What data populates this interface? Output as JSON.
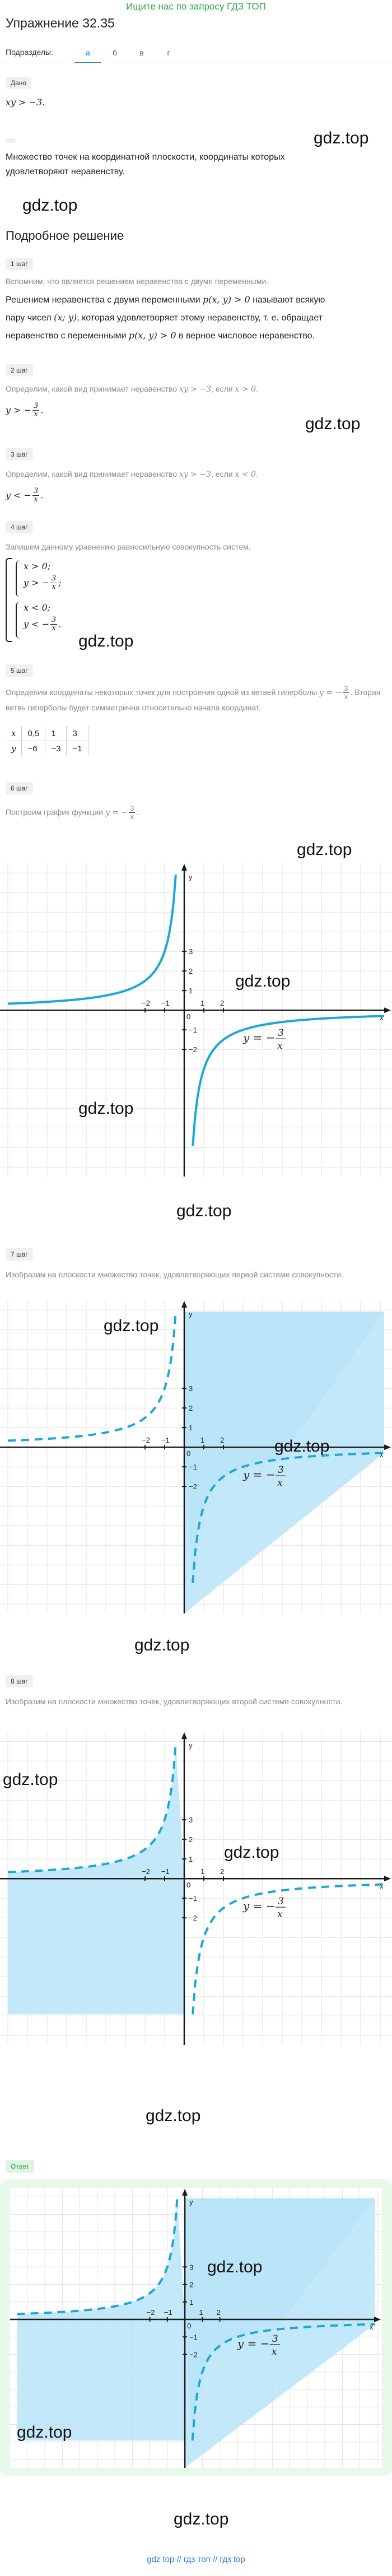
{
  "top_link": "Ищите нас по запросу ГДЗ ТОП",
  "title": "Упражнение 32.35",
  "subsections": {
    "label": "Подразделы:",
    "tabs": [
      "а",
      "б",
      "в",
      "г"
    ],
    "active": "а"
  },
  "given": {
    "tag": "Дано",
    "expr": "xy > −3."
  },
  "find_text": "Множество точек на координатной плоскости, координаты которых удовлетворяют неравенству.",
  "watermark": "gdz.top",
  "solution_heading": "Подробное решение",
  "steps": {
    "s1": {
      "tag": "1 шаг",
      "intro": "Вспомним, что является решением неравенства с двумя переменными.",
      "line1": "Решением неравенства с двумя переменными",
      "line1_math": "p(x, y) > 0",
      "line1_end": "называют всякую",
      "line2": "пару чисел",
      "line2_math": "(x; y)",
      "line2_end": ", которая удовлетворяет этому неравенству, т. е. обращает",
      "line3": "неравенство с переменными",
      "line3_math": "p(x, y) > 0",
      "line3_end": "в верное числовое неравенство."
    },
    "s2": {
      "tag": "2 шаг",
      "text": "Определим, какой вид принимает неравенство",
      "math1": "xy > −3",
      "mid": ", если",
      "math2": "x > 0",
      "result_lhs": "y > −",
      "num": "3",
      "den": "x"
    },
    "s3": {
      "tag": "3 шаг",
      "text": "Определим, какой вид принимает неравенство",
      "math1": "xy > −3",
      "mid": ", если",
      "math2": "x < 0",
      "result_lhs": "y < −",
      "num": "3",
      "den": "x"
    },
    "s4": {
      "tag": "4 шаг",
      "text": "Запишем данному уравнению равносильную совокупность систем.",
      "sys1a": "x > 0;",
      "sys1b": "y > −",
      "sys2a": "x < 0;",
      "sys2b": "y < −",
      "num": "3",
      "den": "x"
    },
    "s5": {
      "tag": "5 шаг",
      "text1": "Определим координаты некоторых точек для построения одной из ветвей гиперболы",
      "text2_math": "y = −",
      "text2_rest": ". Вторая ветвь гиперболы будет симметрична относительно начала координат.",
      "num": "3",
      "den": "x",
      "table": {
        "x_label": "x",
        "y_label": "y",
        "x_values": [
          "0,5",
          "1",
          "3"
        ],
        "y_values": [
          "−6",
          "−3",
          "−1"
        ]
      }
    },
    "s6": {
      "tag": "6 шаг",
      "text": "Построим график функции",
      "math": "y = −",
      "num": "3",
      "den": "x"
    },
    "s7": {
      "tag": "7 шаг",
      "text": "Изобразим на плоскости множество точек, удовлетворяющих первой системе совокупности."
    },
    "s8": {
      "tag": "8 шаг",
      "text": "Изобразим на плоскости множество точек, удовлетворяющих второй системе совокупности."
    }
  },
  "answer_tag": "Ответ",
  "graph": {
    "axis_x": "x",
    "axis_y": "y",
    "tick_x_neg": [
      "−2",
      "−1"
    ],
    "tick_x_pos": [
      "1",
      "2"
    ],
    "tick_y_pos": [
      "1",
      "2",
      "3"
    ],
    "tick_y_neg": [
      "−1",
      "−2"
    ],
    "origin": "0",
    "label_prefix": "y = −",
    "label_num": "3",
    "label_den": "x"
  },
  "bottom_link": "gdz top // гдз топ // гдз top"
}
